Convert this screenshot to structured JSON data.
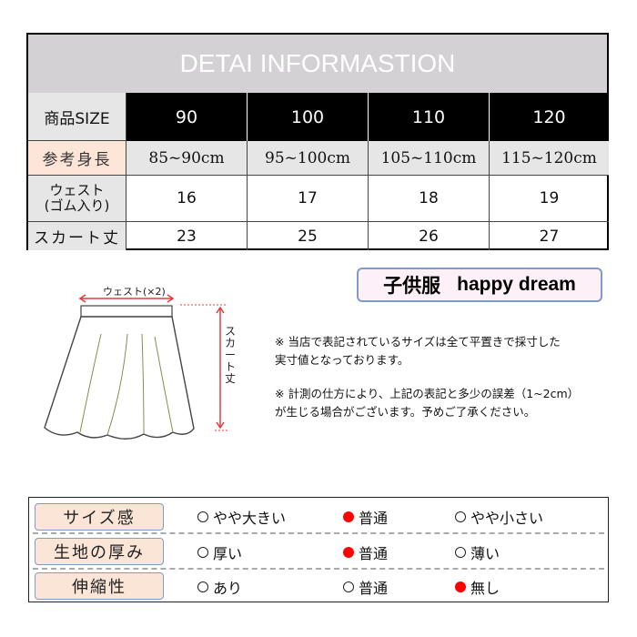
{
  "table": {
    "title": "DETAI INFORMASTION",
    "header_label": "商品SIZE",
    "sizes": [
      "90",
      "100",
      "110",
      "120"
    ],
    "rows": [
      {
        "label": "参考身長",
        "values": [
          "85~90cm",
          "95~100cm",
          "105~110cm",
          "115~120cm"
        ]
      },
      {
        "label": "ウェスト",
        "sublabel": "(ゴム入り)",
        "values": [
          "16",
          "17",
          "18",
          "19"
        ]
      },
      {
        "label": "スカート丈",
        "values": [
          "23",
          "25",
          "26",
          "27"
        ]
      }
    ]
  },
  "diagram": {
    "waist_label": "ウェスト(×2)",
    "length_label": "スカート丈"
  },
  "brand": {
    "kanji": "子供服",
    "name": "happy dream"
  },
  "notes": [
    "※ 当店で表記されているサイズは全て平置きで採寸した",
    "実寸値となっております。",
    "※ 計測の仕方により、上記の表記と多少の誤差（1~2cm）",
    "が生じる場合がございます。予めご了承ください。"
  ],
  "ratings": [
    {
      "label": "サイズ感",
      "options": [
        "やや大きい",
        "普通",
        "やや小さい"
      ],
      "selected": 1
    },
    {
      "label": "生地の厚み",
      "options": [
        "厚い",
        "普通",
        "薄い"
      ],
      "selected": 1
    },
    {
      "label": "伸縮性",
      "options": [
        "あり",
        "普通",
        "無し"
      ],
      "selected": 2
    }
  ],
  "colors": {
    "selected": "#ff0000",
    "label_bg": "#fbe5d7",
    "header_gray": "#d3d1d3",
    "arrow": "#e8383d"
  }
}
